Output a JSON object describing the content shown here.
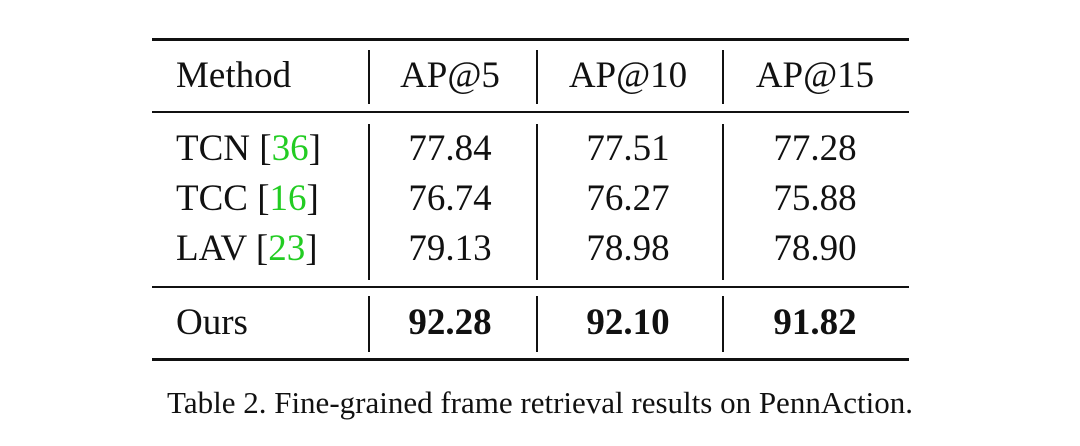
{
  "table": {
    "header": [
      "Method",
      "AP@5",
      "AP@10",
      "AP@15"
    ],
    "rows": [
      {
        "method": "TCN",
        "citation": "[36]",
        "values": [
          "77.84",
          "77.51",
          "77.28"
        ]
      },
      {
        "method": "TCC",
        "citation": "[16]",
        "values": [
          "76.74",
          "76.27",
          "75.88"
        ]
      },
      {
        "method": "LAV",
        "citation": "[23]",
        "values": [
          "79.13",
          "78.98",
          "78.90"
        ]
      }
    ],
    "ours": {
      "method": "Ours",
      "values": [
        "92.28",
        "92.10",
        "91.82"
      ]
    }
  },
  "caption": "Table 2. Fine-grained frame retrieval results on PennAction."
}
